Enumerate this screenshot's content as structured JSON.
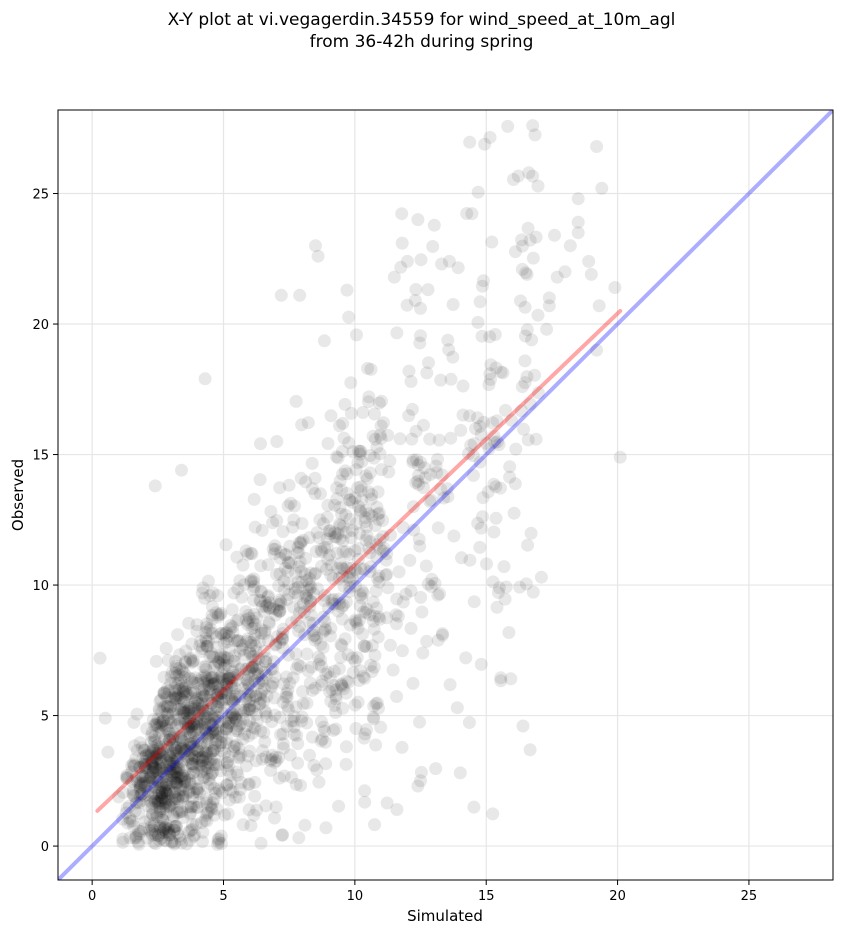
{
  "chart_data": {
    "type": "scatter",
    "title_line1": "X-Y plot at vi.vegagerdin.34559 for wind_speed_at_10m_agl",
    "title_line2": "from 36-42h during spring",
    "xlabel": "Simulated",
    "ylabel": "Observed",
    "xlim": [
      -1.3,
      28.2
    ],
    "ylim": [
      -1.3,
      28.2
    ],
    "xticks": [
      0,
      5,
      10,
      15,
      20,
      25
    ],
    "yticks": [
      0,
      5,
      10,
      15,
      20,
      25
    ],
    "grid": true,
    "point_color": "#000000",
    "point_alpha": 0.09,
    "identity_line": {
      "color": "#0000ff",
      "from": [
        -1.3,
        -1.3
      ],
      "to": [
        28.2,
        28.2
      ]
    },
    "fit_line": {
      "color": "#ff0000",
      "from": [
        0.2,
        1.35
      ],
      "to": [
        20.1,
        20.5
      ]
    },
    "highlighted_points": [
      [
        19.2,
        26.8
      ],
      [
        19.4,
        25.2
      ],
      [
        18.5,
        24.8
      ],
      [
        18.5,
        23.9
      ],
      [
        18.5,
        23.5
      ],
      [
        17.6,
        23.4
      ],
      [
        18.2,
        23.0
      ],
      [
        18.9,
        22.4
      ],
      [
        18.0,
        22.0
      ],
      [
        19.0,
        21.9
      ],
      [
        17.7,
        21.8
      ],
      [
        17.4,
        21.0
      ],
      [
        17.4,
        20.7
      ],
      [
        19.9,
        21.4
      ],
      [
        19.3,
        20.7
      ],
      [
        17.3,
        19.8
      ],
      [
        19.2,
        19.0
      ],
      [
        20.1,
        14.9
      ],
      [
        17.1,
        10.3
      ],
      [
        16.4,
        4.6
      ],
      [
        12.4,
        24.0
      ],
      [
        11.8,
        23.1
      ],
      [
        8.5,
        23.0
      ],
      [
        8.6,
        22.6
      ],
      [
        12.0,
        22.4
      ],
      [
        13.3,
        22.3
      ],
      [
        13.6,
        22.4
      ],
      [
        11.5,
        21.8
      ],
      [
        7.9,
        21.1
      ],
      [
        7.2,
        21.1
      ],
      [
        9.7,
        21.3
      ],
      [
        12.3,
        20.9
      ],
      [
        12.5,
        20.6
      ],
      [
        4.3,
        17.9
      ],
      [
        13.9,
        5.3
      ],
      [
        12.4,
        2.3
      ],
      [
        12.5,
        2.5
      ],
      [
        11.6,
        1.4
      ],
      [
        8.1,
        0.8
      ],
      [
        8.9,
        0.7
      ],
      [
        0.3,
        7.2
      ],
      [
        0.5,
        4.9
      ],
      [
        0.6,
        3.6
      ],
      [
        2.4,
        13.8
      ],
      [
        3.4,
        14.4
      ]
    ]
  }
}
